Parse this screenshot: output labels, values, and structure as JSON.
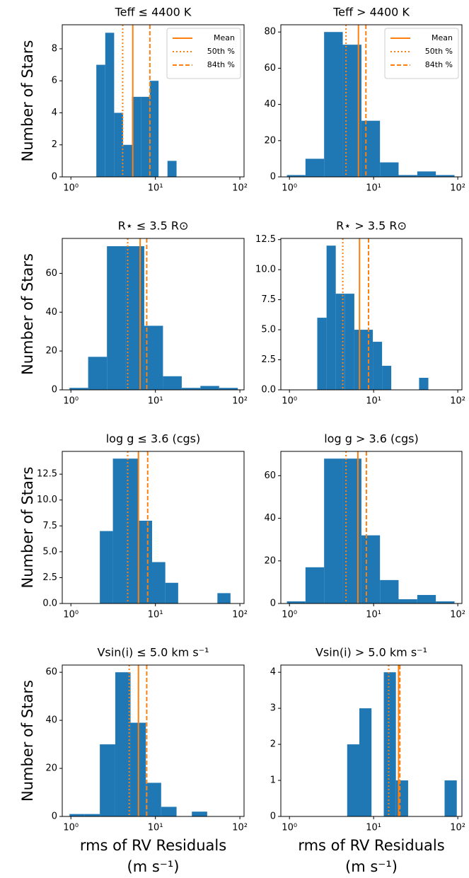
{
  "chart_data": [
    {
      "type": "histogram",
      "title": "Teff ≤ 4400 K",
      "y_label": "Number of Stars",
      "legend": "upper right",
      "bins": [
        2.0,
        2.55,
        3.25,
        4.14,
        5.28,
        6.73,
        8.58,
        10.9,
        13.9,
        17.8
      ],
      "counts": [
        7,
        9,
        4,
        2,
        5,
        5,
        6,
        0,
        1
      ],
      "color": "#1f77b4",
      "line_color": "#ff7f0e",
      "lines": [
        {
          "name": "Mean",
          "value": 5.4,
          "style": "solid"
        },
        {
          "name": "50th %",
          "value": 4.1,
          "style": "dotted"
        },
        {
          "name": "84th %",
          "value": 8.6,
          "style": "dashed"
        }
      ],
      "log_x": true,
      "xlim": [
        0.79,
        112
      ],
      "xticks": [
        {
          "value": 1,
          "label": "10⁰"
        },
        {
          "value": 10,
          "label": "10¹"
        },
        {
          "value": 100,
          "label": "10²"
        }
      ],
      "ylim": [
        0,
        9.5
      ],
      "yticks": [
        0,
        2,
        4,
        6,
        8
      ]
    },
    {
      "type": "histogram",
      "title": "Teff > 4400 K",
      "legend": "upper right",
      "bins": [
        0.933,
        1.55,
        2.58,
        4.3,
        7.16,
        11.9,
        19.8,
        33.0,
        54.9,
        91.4
      ],
      "counts": [
        1,
        10,
        80,
        73,
        31,
        8,
        1,
        3,
        1
      ],
      "color": "#1f77b4",
      "line_color": "#ff7f0e",
      "lines": [
        {
          "name": "Mean",
          "value": 6.6,
          "style": "solid"
        },
        {
          "name": "50th %",
          "value": 4.7,
          "style": "dotted"
        },
        {
          "name": "84th %",
          "value": 8.1,
          "style": "dashed"
        }
      ],
      "log_x": true,
      "xlim": [
        0.79,
        112
      ],
      "xticks": [
        {
          "value": 1,
          "label": "10⁰"
        },
        {
          "value": 10,
          "label": "10¹"
        },
        {
          "value": 100,
          "label": "10²"
        }
      ],
      "ylim": [
        0,
        84
      ],
      "yticks": [
        0,
        20,
        40,
        60,
        80
      ]
    },
    {
      "type": "histogram",
      "title": "R⋆ ≤ 3.5 R⊙",
      "y_label": "Number of Stars",
      "bins": [
        0.962,
        1.6,
        2.67,
        4.44,
        7.38,
        12.3,
        20.5,
        34.1,
        56.8,
        94.5
      ],
      "counts": [
        1,
        17,
        74,
        74,
        33,
        7,
        1,
        2,
        1
      ],
      "color": "#1f77b4",
      "line_color": "#ff7f0e",
      "lines": [
        {
          "value": 6.6,
          "style": "solid"
        },
        {
          "value": 4.7,
          "style": "dotted"
        },
        {
          "value": 7.9,
          "style": "dashed"
        }
      ],
      "log_x": true,
      "xlim": [
        0.79,
        112
      ],
      "xticks": [
        {
          "value": 1,
          "label": "10⁰"
        },
        {
          "value": 10,
          "label": "10¹"
        },
        {
          "value": 100,
          "label": "10²"
        }
      ],
      "ylim": [
        0,
        78
      ],
      "yticks": [
        0,
        20,
        40,
        60
      ]
    },
    {
      "type": "histogram",
      "title": "R⋆ > 3.5 R⊙",
      "bins": [
        2.14,
        2.76,
        3.55,
        4.58,
        5.9,
        7.6,
        9.79,
        12.6,
        16.2,
        20.9,
        27.0,
        34.7,
        44.7
      ],
      "counts": [
        6,
        12,
        8,
        8,
        5,
        5,
        4,
        2,
        0,
        0,
        0,
        1
      ],
      "color": "#1f77b4",
      "line_color": "#ff7f0e",
      "lines": [
        {
          "value": 6.8,
          "style": "solid"
        },
        {
          "value": 4.3,
          "style": "dotted"
        },
        {
          "value": 8.7,
          "style": "dashed"
        }
      ],
      "log_x": true,
      "xlim": [
        0.79,
        112
      ],
      "xticks": [
        {
          "value": 1,
          "label": "10⁰"
        },
        {
          "value": 10,
          "label": "10¹"
        },
        {
          "value": 100,
          "label": "10²"
        }
      ],
      "ylim": [
        0,
        12.6
      ],
      "yticks": [
        {
          "value": 0,
          "label": "0.0"
        },
        2.5,
        {
          "value": 5,
          "label": "5.0"
        },
        7.5,
        {
          "value": 10,
          "label": "10.0"
        },
        12.5
      ]
    },
    {
      "type": "histogram",
      "title": "log g ≤ 3.6 (cgs)",
      "y_label": "Number of Stars",
      "bins": [
        2.2,
        3.14,
        4.48,
        6.4,
        9.14,
        13.1,
        18.6,
        26.6,
        38.0,
        54.2,
        77.4
      ],
      "counts": [
        7,
        14,
        14,
        8,
        4,
        2,
        0,
        0,
        0,
        1
      ],
      "color": "#1f77b4",
      "line_color": "#ff7f0e",
      "lines": [
        {
          "value": 6.3,
          "style": "solid"
        },
        {
          "value": 4.7,
          "style": "dotted"
        },
        {
          "value": 8.1,
          "style": "dashed"
        }
      ],
      "log_x": true,
      "xlim": [
        0.79,
        112
      ],
      "xticks": [
        {
          "value": 1,
          "label": "10⁰"
        },
        {
          "value": 10,
          "label": "10¹"
        },
        {
          "value": 100,
          "label": "10²"
        }
      ],
      "ylim": [
        0,
        14.7
      ],
      "yticks": [
        {
          "value": 0,
          "label": "0.0"
        },
        2.5,
        {
          "value": 5,
          "label": "5.0"
        },
        7.5,
        {
          "value": 10,
          "label": "10.0"
        },
        12.5
      ]
    },
    {
      "type": "histogram",
      "title": "log g > 3.6 (cgs)",
      "bins": [
        0.933,
        1.55,
        2.58,
        4.3,
        7.16,
        11.9,
        19.8,
        33.0,
        54.9,
        91.4
      ],
      "counts": [
        1,
        17,
        68,
        68,
        32,
        11,
        2,
        4,
        1
      ],
      "color": "#1f77b4",
      "line_color": "#ff7f0e",
      "lines": [
        {
          "value": 6.5,
          "style": "solid"
        },
        {
          "value": 4.7,
          "style": "dotted"
        },
        {
          "value": 8.2,
          "style": "dashed"
        }
      ],
      "log_x": true,
      "xlim": [
        0.79,
        112
      ],
      "xticks": [
        {
          "value": 1,
          "label": "10⁰"
        },
        {
          "value": 10,
          "label": "10¹"
        },
        {
          "value": 100,
          "label": "10²"
        }
      ],
      "ylim": [
        0,
        71.4
      ],
      "yticks": [
        0,
        20,
        40,
        60
      ]
    },
    {
      "type": "histogram",
      "title": "Vsin(i) ≤ 5.0 km s⁻¹",
      "y_label": "Number of Stars",
      "x_label": [
        "rms of RV Residuals",
        "(m s⁻¹)"
      ],
      "bins": [
        0.962,
        1.46,
        2.2,
        3.35,
        5.08,
        7.71,
        11.7,
        17.8,
        27.0,
        41.0
      ],
      "counts": [
        1,
        1,
        30,
        60,
        39,
        14,
        4,
        0,
        2
      ],
      "color": "#1f77b4",
      "line_color": "#ff7f0e",
      "lines": [
        {
          "value": 6.3,
          "style": "solid"
        },
        {
          "value": 4.9,
          "style": "dotted"
        },
        {
          "value": 7.9,
          "style": "dashed"
        }
      ],
      "log_x": true,
      "xlim": [
        0.79,
        112
      ],
      "xticks": [
        {
          "value": 1,
          "label": "10⁰"
        },
        {
          "value": 10,
          "label": "10¹"
        },
        {
          "value": 100,
          "label": "10²"
        }
      ],
      "ylim": [
        0,
        63
      ],
      "yticks": [
        0,
        20,
        40,
        60
      ]
    },
    {
      "type": "histogram",
      "title": "Vsin(i) > 5.0 km s⁻¹",
      "x_label": [
        "rms of RV Residuals",
        "(m s⁻¹)"
      ],
      "bins": [
        4.85,
        6.77,
        9.44,
        13.2,
        18.4,
        25.7,
        35.8,
        50.0,
        69.7,
        97.3
      ],
      "counts": [
        2,
        3,
        0,
        4,
        1,
        0,
        0,
        0,
        1
      ],
      "color": "#1f77b4",
      "line_color": "#ff7f0e",
      "lines": [
        {
          "value": 19.8,
          "style": "solid"
        },
        {
          "value": 15.1,
          "style": "dotted"
        },
        {
          "value": 20.5,
          "style": "dashed"
        }
      ],
      "log_x": true,
      "xlim": [
        0.79,
        112
      ],
      "xticks": [
        {
          "value": 1,
          "label": "10⁰"
        },
        {
          "value": 10,
          "label": "10¹"
        },
        {
          "value": 100,
          "label": "10²"
        }
      ],
      "ylim": [
        0,
        4.2
      ],
      "yticks": [
        0,
        1,
        2,
        3,
        4
      ]
    }
  ]
}
